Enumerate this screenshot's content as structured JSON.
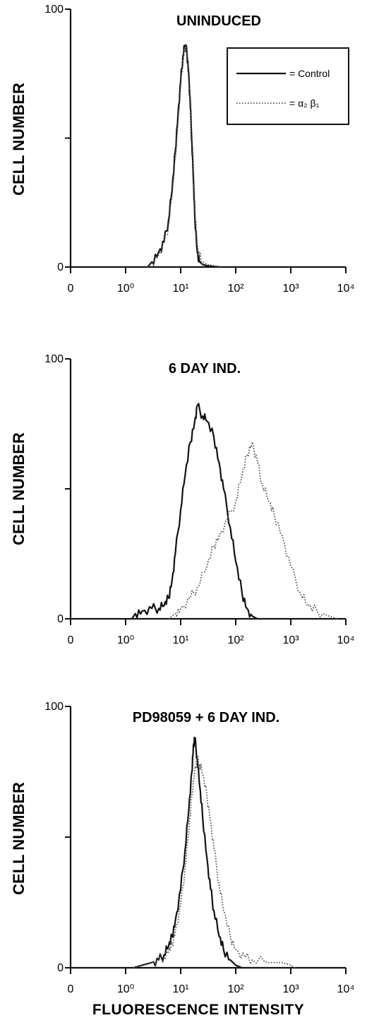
{
  "figure": {
    "x_axis_label": "FLUORESCENCE INTENSITY",
    "legend": {
      "control_label": "= Control",
      "a2b1_label": "= α₂ β₁"
    }
  },
  "colors": {
    "control": "#111111",
    "a2b1": "#555555",
    "axis": "#111111"
  },
  "chart_data": [
    {
      "type": "line",
      "title": "UNINDUCED",
      "xlabel": "",
      "ylabel": "CELL NUMBER",
      "x_scale": "log",
      "x_ticks": [
        "0",
        "10⁰",
        "10¹",
        "10²",
        "10³",
        "10⁴"
      ],
      "y_ticks": [
        "0",
        "100"
      ],
      "ylim": [
        0,
        100
      ],
      "legend_position": "top-right",
      "series": [
        {
          "name": "Control",
          "style": "solid",
          "x": [
            2.5,
            3,
            4,
            5,
            6,
            7,
            8,
            9,
            10,
            11,
            12,
            13,
            14,
            15,
            16,
            17,
            18,
            20,
            22,
            25,
            30,
            40,
            55
          ],
          "y": [
            0,
            2,
            6,
            10,
            18,
            30,
            45,
            60,
            72,
            82,
            86,
            83,
            75,
            62,
            48,
            34,
            20,
            6,
            2,
            1,
            0.5,
            0.2,
            0
          ]
        },
        {
          "name": "α2 β1",
          "style": "dotted",
          "x": [
            2.5,
            3,
            4,
            5,
            6,
            7,
            8,
            9,
            10,
            11,
            12,
            13,
            14,
            15,
            16,
            17,
            18,
            20,
            22,
            25,
            30,
            40,
            55
          ],
          "y": [
            0,
            1.5,
            5,
            9,
            16,
            28,
            42,
            57,
            70,
            80,
            85,
            84,
            77,
            65,
            52,
            38,
            24,
            9,
            4,
            2,
            1,
            0.5,
            0
          ]
        }
      ]
    },
    {
      "type": "line",
      "title": "6 DAY IND.",
      "xlabel": "",
      "ylabel": "CELL NUMBER",
      "x_scale": "log",
      "x_ticks": [
        "0",
        "10⁰",
        "10¹",
        "10²",
        "10³",
        "10⁴"
      ],
      "y_ticks": [
        "0",
        "100"
      ],
      "ylim": [
        0,
        100
      ],
      "series": [
        {
          "name": "Control",
          "style": "solid",
          "x": [
            1.3,
            1.5,
            2,
            3,
            4,
            5,
            6,
            7,
            8,
            10,
            12,
            15,
            18,
            20,
            25,
            30,
            40,
            50,
            60,
            80,
            100,
            130,
            160,
            200,
            250
          ],
          "y": [
            0,
            2,
            3,
            4,
            4,
            5,
            8,
            15,
            25,
            42,
            55,
            68,
            76,
            82,
            78,
            76,
            70,
            60,
            50,
            35,
            22,
            10,
            4,
            1,
            0
          ]
        },
        {
          "name": "α2 β1",
          "style": "dotted",
          "x": [
            6,
            8,
            10,
            15,
            20,
            30,
            40,
            50,
            70,
            100,
            130,
            160,
            200,
            250,
            300,
            400,
            500,
            700,
            1000,
            1500,
            2000,
            3000,
            5000,
            7000
          ],
          "y": [
            0,
            2,
            4,
            8,
            12,
            20,
            28,
            32,
            38,
            45,
            55,
            63,
            68,
            60,
            52,
            45,
            40,
            32,
            20,
            10,
            5,
            3,
            1,
            0
          ]
        }
      ]
    },
    {
      "type": "line",
      "title": "PD98059 + 6 DAY IND.",
      "xlabel": "FLUORESCENCE INTENSITY",
      "ylabel": "CELL NUMBER",
      "x_scale": "log",
      "x_ticks": [
        "0",
        "10⁰",
        "10¹",
        "10²",
        "10³",
        "10⁴"
      ],
      "y_ticks": [
        "0",
        "100"
      ],
      "ylim": [
        0,
        100
      ],
      "series": [
        {
          "name": "Control",
          "style": "solid",
          "x": [
            1.4,
            2,
            3,
            4,
            5,
            6,
            7,
            8,
            10,
            12,
            14,
            16,
            17,
            18,
            20,
            22,
            25,
            30,
            35,
            40,
            50,
            60,
            80,
            100,
            130
          ],
          "y": [
            0,
            1,
            2,
            3,
            5,
            8,
            12,
            18,
            30,
            45,
            60,
            75,
            85,
            88,
            80,
            70,
            58,
            42,
            30,
            22,
            12,
            7,
            3,
            1,
            0
          ]
        },
        {
          "name": "α2 β1",
          "style": "dotted",
          "x": [
            1.4,
            2,
            3,
            4,
            5,
            6,
            7,
            8,
            10,
            12,
            14,
            16,
            18,
            20,
            22,
            25,
            30,
            35,
            40,
            50,
            60,
            80,
            100,
            150,
            200,
            400,
            700,
            1000,
            1200
          ],
          "y": [
            0,
            1,
            2,
            3,
            4,
            6,
            9,
            14,
            24,
            38,
            52,
            66,
            76,
            80,
            78,
            74,
            66,
            56,
            46,
            32,
            22,
            12,
            7,
            4,
            3,
            2,
            2,
            1,
            0
          ]
        }
      ]
    }
  ]
}
